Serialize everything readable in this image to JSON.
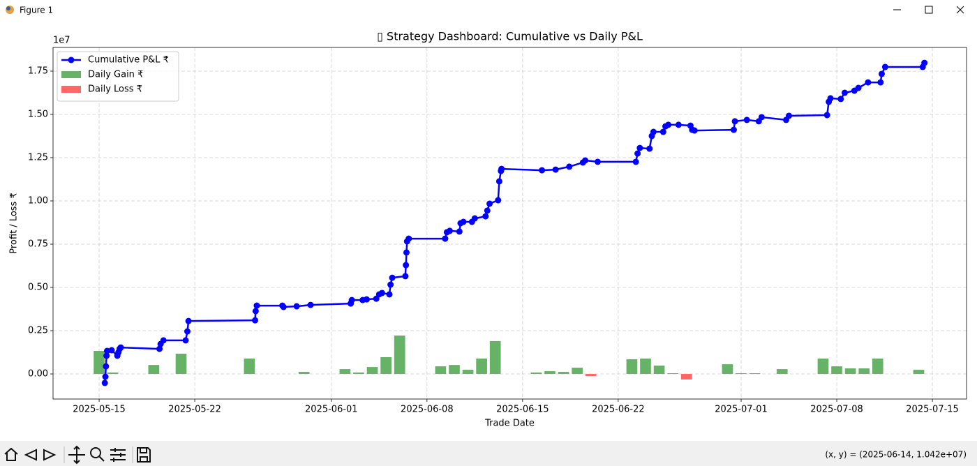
{
  "window": {
    "title": "Figure 1",
    "status": "(x, y) = (2025-06-14, 1.042e+07)"
  },
  "chart_data": {
    "type": "combo",
    "title": "▯ Strategy Dashboard: Cumulative vs Daily P&L",
    "x_label": "Trade Date",
    "y_label": "Profit / Loss ₹",
    "y_offset_label": "1e7",
    "grid": true,
    "legend": "upper left",
    "xlim": [
      "2025-05-11 15:00",
      "2025-07-17 12:00"
    ],
    "xticks": [
      "2025-05-15",
      "2025-05-22",
      "2025-06-01",
      "2025-06-08",
      "2025-06-15",
      "2025-06-22",
      "2025-07-01",
      "2025-07-08",
      "2025-07-15"
    ],
    "ylim": [
      -0.145,
      1.887
    ],
    "yticks": [
      {
        "value": 0,
        "label": "0.00"
      },
      0.25,
      {
        "value": 0.5,
        "label": "0.50"
      },
      0.75,
      {
        "value": 1,
        "label": "1.00"
      },
      1.25,
      {
        "value": 1.5,
        "label": "1.50"
      },
      1.75
    ],
    "series": [
      {
        "name": "Cumulative P&L ₹",
        "type": "line",
        "color": "#0000ff",
        "x": [
          "2025-05-15 10:00",
          "2025-05-15 11:00",
          "2025-05-15 12:00",
          "2025-05-15 13:00",
          "2025-05-15 14:00",
          "2025-05-15 22:00",
          "2025-05-16 08:00",
          "2025-05-16 10:00",
          "2025-05-16 12:00",
          "2025-05-16 14:00",
          "2025-05-19 10:00",
          "2025-05-19 12:00",
          "2025-05-19 17:00",
          "2025-05-21 08:00",
          "2025-05-21 11:00",
          "2025-05-21 13:00",
          "2025-05-26 10:00",
          "2025-05-26 11:00",
          "2025-05-26 13:00",
          "2025-05-28 10:00",
          "2025-05-28 12:00",
          "2025-05-29 11:00",
          "2025-05-30 11:30",
          "2025-06-02 10:00",
          "2025-06-02 12:00",
          "2025-06-03 07:00",
          "2025-06-03 14:00",
          "2025-06-04 07:00",
          "2025-06-04 12:00",
          "2025-06-04 17:00",
          "2025-06-05 06:00",
          "2025-06-05 08:00",
          "2025-06-05 11:00",
          "2025-06-06 10:00",
          "2025-06-06 11:00",
          "2025-06-06 12:00",
          "2025-06-06 13:00",
          "2025-06-06 16:00",
          "2025-06-09 08:00",
          "2025-06-09 11:00",
          "2025-06-09 16:00",
          "2025-06-10 09:00",
          "2025-06-10 11:00",
          "2025-06-10 16:00",
          "2025-06-11 07:00",
          "2025-06-11 12:00",
          "2025-06-12 07:00",
          "2025-06-12 10:00",
          "2025-06-12 14:00",
          "2025-06-13 05:00",
          "2025-06-13 07:00",
          "2025-06-13 10:00",
          "2025-06-13 11:00",
          "2025-06-16 10:00",
          "2025-06-17 10:00",
          "2025-06-18 10:00",
          "2025-06-19 10:00",
          "2025-06-19 14:00",
          "2025-06-20 12:00",
          "2025-06-23 07:00",
          "2025-06-23 10:00",
          "2025-06-23 14:00",
          "2025-06-24 07:00",
          "2025-06-24 11:00",
          "2025-06-24 14:00",
          "2025-06-25 07:00",
          "2025-06-25 11:00",
          "2025-06-25 16:00",
          "2025-06-26 10:00",
          "2025-06-27 07:00",
          "2025-06-27 10:00",
          "2025-06-27 14:00",
          "2025-06-30 11:00",
          "2025-06-30 13:00",
          "2025-07-01 10:00",
          "2025-07-02 07:00",
          "2025-07-02 12:00",
          "2025-07-04 07:00",
          "2025-07-04 12:00",
          "2025-07-07 07:00",
          "2025-07-07 10:00",
          "2025-07-07 13:00",
          "2025-07-08 07:00",
          "2025-07-08 14:00",
          "2025-07-09 07:00",
          "2025-07-09 14:00",
          "2025-07-10 07:00",
          "2025-07-11 05:00",
          "2025-07-11 07:00",
          "2025-07-11 13:00",
          "2025-07-14 07:00",
          "2025-07-14 10:00"
        ],
        "values": [
          -0.052,
          -0.016,
          0.044,
          0.105,
          0.133,
          0.137,
          0.105,
          0.125,
          0.145,
          0.153,
          0.145,
          0.173,
          0.194,
          0.194,
          0.246,
          0.306,
          0.31,
          0.363,
          0.395,
          0.395,
          0.387,
          0.391,
          0.399,
          0.407,
          0.427,
          0.427,
          0.431,
          0.435,
          0.46,
          0.468,
          0.46,
          0.516,
          0.556,
          0.565,
          0.629,
          0.702,
          0.766,
          0.782,
          0.782,
          0.819,
          0.827,
          0.823,
          0.871,
          0.879,
          0.879,
          0.899,
          0.911,
          0.944,
          0.984,
          1.004,
          1.113,
          1.173,
          1.185,
          1.177,
          1.181,
          1.198,
          1.222,
          1.234,
          1.226,
          1.226,
          1.274,
          1.306,
          1.302,
          1.375,
          1.399,
          1.399,
          1.431,
          1.44,
          1.44,
          1.435,
          1.411,
          1.407,
          1.411,
          1.46,
          1.468,
          1.46,
          1.484,
          1.468,
          1.492,
          1.496,
          1.573,
          1.593,
          1.589,
          1.625,
          1.637,
          1.653,
          1.685,
          1.685,
          1.734,
          1.774,
          1.774,
          1.798
        ]
      },
      {
        "name": "Daily Gain ₹",
        "type": "bar",
        "color": "#66b266",
        "x": [
          "2025-05-15",
          "2025-05-16",
          "2025-05-19",
          "2025-05-21",
          "2025-05-26",
          "2025-05-30",
          "2025-06-02",
          "2025-06-03",
          "2025-06-04",
          "2025-06-05",
          "2025-06-06",
          "2025-06-09",
          "2025-06-10",
          "2025-06-11",
          "2025-06-12",
          "2025-06-13",
          "2025-06-16",
          "2025-06-17",
          "2025-06-18",
          "2025-06-19",
          "2025-06-23",
          "2025-06-24",
          "2025-06-25",
          "2025-06-26",
          "2025-06-30",
          "2025-07-01",
          "2025-07-02",
          "2025-07-04",
          "2025-07-07",
          "2025-07-08",
          "2025-07-09",
          "2025-07-10",
          "2025-07-11",
          "2025-07-14"
        ],
        "values": [
          0.133,
          0.008,
          0.052,
          0.117,
          0.089,
          0.012,
          0.028,
          0.008,
          0.04,
          0.097,
          0.222,
          0.044,
          0.052,
          0.024,
          0.089,
          0.19,
          0.008,
          0.016,
          0.012,
          0.036,
          0.085,
          0.089,
          0.048,
          0.004,
          0.056,
          0.004,
          0.004,
          0.028,
          0.089,
          0.044,
          0.032,
          0.032,
          0.089,
          0.024
        ]
      },
      {
        "name": "Daily Loss ₹",
        "type": "bar",
        "color": "#ff6666",
        "x": [
          "2025-06-20",
          "2025-06-27"
        ],
        "values": [
          -0.012,
          -0.032
        ]
      }
    ]
  }
}
